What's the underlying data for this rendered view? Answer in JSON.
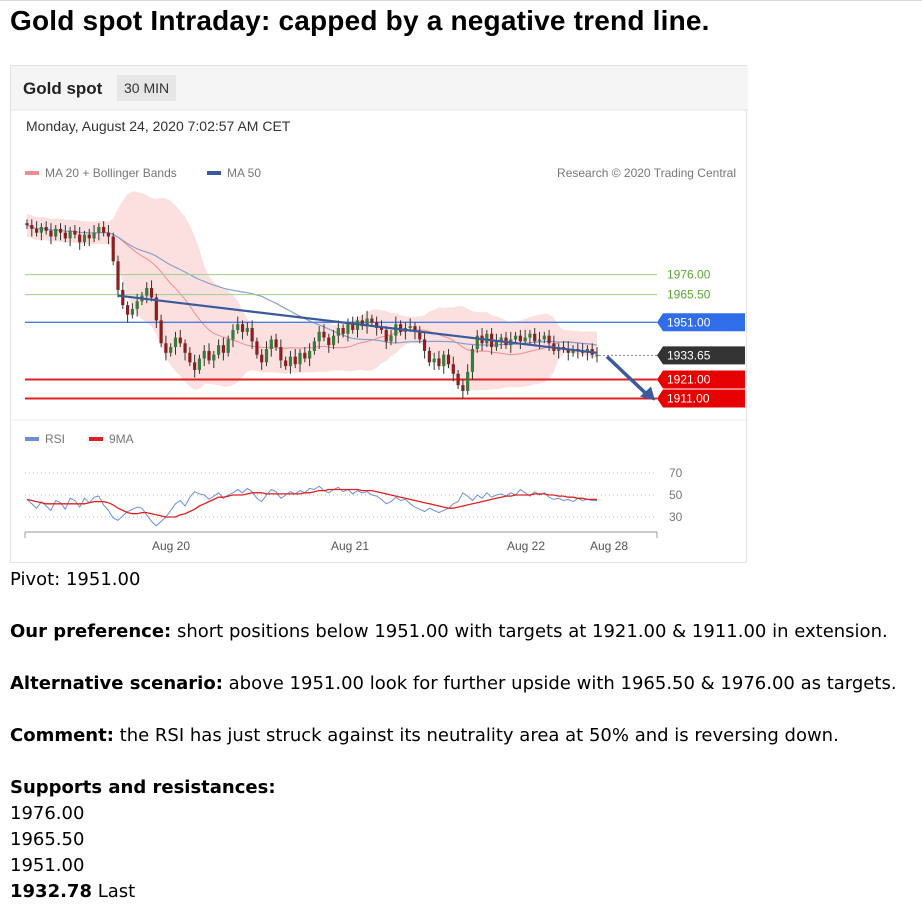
{
  "headline": "Gold spot Intraday: capped by a negative trend line.",
  "chart": {
    "instrument": "Gold spot",
    "interval": "30 MIN",
    "timestamp": "Monday, August 24, 2020 7:02:57 AM CET",
    "legend": [
      {
        "label": "MA 20 + Bollinger Bands",
        "color": "#f08c8c"
      },
      {
        "label": "MA 50",
        "color": "#3a5aa0"
      }
    ],
    "credit": "Research © 2020 Trading Central",
    "rsi_legend": [
      {
        "label": "RSI",
        "color": "#6d8fd8"
      },
      {
        "label": "9MA",
        "color": "#e02020"
      }
    ]
  },
  "chart_data": [
    {
      "type": "candlestick",
      "panel": "price",
      "x_ticks": [
        "Aug 20",
        "Aug 21",
        "Aug 22",
        "Aug 28"
      ],
      "levels": [
        {
          "value": 1976.0,
          "label": "1976.00",
          "style": "green-line"
        },
        {
          "value": 1965.5,
          "label": "1965.50",
          "style": "green-line"
        },
        {
          "value": 1951.0,
          "label": "1951.00",
          "style": "blue-badge"
        },
        {
          "value": 1933.65,
          "label": "1933.65",
          "style": "dark-badge"
        },
        {
          "value": 1921.0,
          "label": "1921.00",
          "style": "red-badge"
        },
        {
          "value": 1911.0,
          "label": "1911.00",
          "style": "red-badge"
        }
      ],
      "annotations": [
        "negative trend line",
        "downward arrow toward 1911.00"
      ],
      "close": [
        2002,
        2000,
        1998,
        2001,
        1999,
        1996,
        2000,
        1998,
        1995,
        1999,
        1997,
        1993,
        1997,
        1995,
        1998,
        2001,
        1998,
        1996,
        1983,
        1968,
        1960,
        1955,
        1958,
        1962,
        1965,
        1969,
        1964,
        1952,
        1940,
        1935,
        1938,
        1943,
        1940,
        1935,
        1930,
        1926,
        1932,
        1936,
        1931,
        1934,
        1939,
        1935,
        1942,
        1947,
        1950,
        1946,
        1948,
        1941,
        1934,
        1930,
        1937,
        1942,
        1938,
        1931,
        1928,
        1933,
        1929,
        1935,
        1932,
        1936,
        1941,
        1946,
        1943,
        1939,
        1944,
        1948,
        1945,
        1950,
        1947,
        1952,
        1949,
        1953,
        1951,
        1948,
        1947,
        1941,
        1944,
        1950,
        1946,
        1948,
        1949,
        1946,
        1942,
        1936,
        1930,
        1932,
        1928,
        1934,
        1929,
        1924,
        1918,
        1915,
        1925,
        1937,
        1944,
        1940,
        1945,
        1938,
        1941,
        1943,
        1939,
        1942,
        1944,
        1941,
        1943,
        1945,
        1941,
        1942,
        1944,
        1940,
        1936,
        1938,
        1937,
        1935,
        1937,
        1936,
        1935,
        1937,
        1934,
        1934
      ]
    },
    {
      "type": "line",
      "panel": "rsi",
      "y_ticks": [
        70,
        50,
        30
      ],
      "ylim": [
        20,
        80
      ],
      "series": [
        {
          "name": "RSI",
          "values": [
            46,
            42,
            38,
            44,
            40,
            36,
            45,
            43,
            37,
            47,
            45,
            39,
            47,
            43,
            48,
            49,
            41,
            36,
            29,
            27,
            31,
            35,
            37,
            39,
            38,
            32,
            26,
            22,
            26,
            30,
            36,
            42,
            45,
            40,
            48,
            53,
            51,
            50,
            46,
            49,
            52,
            47,
            50,
            52,
            55,
            52,
            56,
            53,
            47,
            44,
            50,
            55,
            53,
            47,
            50,
            53,
            51,
            54,
            52,
            56,
            55,
            58,
            54,
            52,
            55,
            57,
            53,
            55,
            51,
            54,
            52,
            53,
            50,
            49,
            46,
            42,
            44,
            48,
            45,
            46,
            42,
            39,
            37,
            35,
            38,
            36,
            34,
            36,
            38,
            42,
            44,
            52,
            49,
            45,
            50,
            47,
            52,
            48,
            50,
            51,
            49,
            52,
            50,
            55,
            52,
            49,
            53,
            50,
            52,
            48,
            46,
            47,
            45,
            46,
            44,
            47,
            45,
            46,
            45,
            45
          ]
        },
        {
          "name": "9MA",
          "values": [
            46,
            45,
            44,
            43,
            42,
            42,
            42,
            42,
            42,
            42,
            42,
            42,
            42,
            43,
            44,
            44,
            44,
            43,
            41,
            38,
            36,
            34,
            33,
            33,
            34,
            34,
            33,
            32,
            31,
            30,
            30,
            30,
            32,
            33,
            35,
            37,
            40,
            42,
            44,
            46,
            48,
            48,
            49,
            50,
            50,
            50,
            51,
            52,
            52,
            52,
            51,
            51,
            51,
            51,
            51,
            51,
            51,
            51,
            52,
            52,
            53,
            54,
            54,
            55,
            55,
            55,
            55,
            55,
            55,
            55,
            54,
            54,
            54,
            53,
            52,
            51,
            50,
            49,
            48,
            47,
            46,
            45,
            44,
            43,
            42,
            41,
            40,
            39,
            38,
            38,
            39,
            40,
            41,
            42,
            43,
            44,
            45,
            46,
            47,
            48,
            49,
            49,
            50,
            50,
            50,
            50,
            51,
            51,
            51,
            50,
            50,
            49,
            49,
            48,
            48,
            47,
            47,
            46,
            46,
            46
          ]
        }
      ]
    }
  ],
  "pivot": {
    "label": "Pivot:",
    "value": "1951.00"
  },
  "preference": {
    "label": "Our preference:",
    "text": "short positions below 1951.00 with targets at 1921.00 & 1911.00 in extension."
  },
  "alternative": {
    "label": "Alternative scenario:",
    "text": "above 1951.00 look for further upside with 1965.50 & 1976.00 as targets."
  },
  "comment": {
    "label": "Comment:",
    "text": "the RSI has just struck against its neutrality area at 50% and is reversing down."
  },
  "supports": {
    "label": "Supports and resistances:",
    "levels": [
      "1976.00",
      "1965.50",
      "1951.00"
    ],
    "last_value": "1932.78",
    "last_label": "Last"
  }
}
